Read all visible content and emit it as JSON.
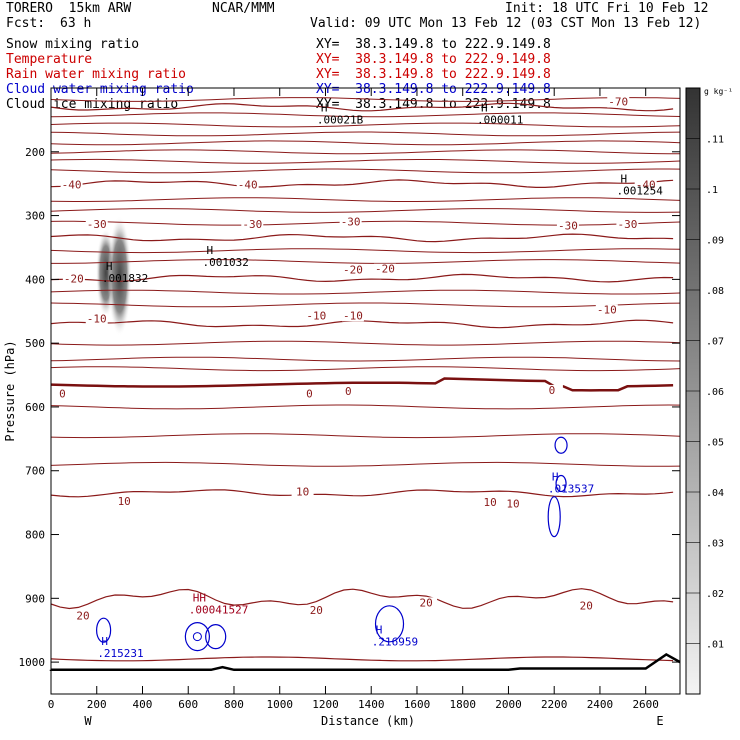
{
  "header": {
    "model": "TORERO  15km ARW",
    "org": "NCAR/MMM",
    "init": "Init: 18 UTC Fri 10 Feb 12",
    "fcst_label": "Fcst:",
    "fcst_value": "63 h",
    "valid": "Valid: 09 UTC Mon 13 Feb 12 (03 CST Mon 13 Feb 12)"
  },
  "legend": [
    {
      "field": "Snow mixing ratio",
      "xy": "XY=  38.3.149.8 to 222.9.149.8",
      "color": "#000000"
    },
    {
      "field": "Temperature",
      "xy": "XY=  38.3.149.8 to 222.9.149.8",
      "color": "#cc0000"
    },
    {
      "field": "Rain water mixing ratio",
      "xy": "XY=  38.3.149.8 to 222.9.149.8",
      "color": "#cc0000"
    },
    {
      "field": "Cloud water mixing ratio",
      "xy": "XY=  38.3.149.8 to 222.9.149.8",
      "color": "#0000cc"
    },
    {
      "field": "Cloud ice mixing ratio",
      "xy": "XY=  38.3.149.8 to 222.9.149.8",
      "color": "#000000"
    }
  ],
  "chart_data": {
    "type": "cross-section contour",
    "xlabel": "Distance (km)",
    "ylabel": "Pressure (hPa)",
    "xlim": [
      0,
      2750
    ],
    "ylim": [
      1050,
      100
    ],
    "x_ticks": [
      0,
      200,
      400,
      600,
      800,
      1000,
      1200,
      1400,
      1600,
      1800,
      2000,
      2200,
      2400,
      2600
    ],
    "y_ticks": [
      200,
      300,
      400,
      500,
      600,
      700,
      800,
      900,
      1000
    ],
    "x_end_labels": {
      "left": "W",
      "right": "E"
    },
    "colorbar": {
      "unit": "g kg⁻¹",
      "labels": [
        ".01",
        ".02",
        ".03",
        ".04",
        ".05",
        ".06",
        ".07",
        ".08",
        ".09",
        ".1",
        ".11"
      ]
    },
    "temperature_isotherms": [
      {
        "value": -70,
        "pressure": 130
      },
      {
        "value": -40,
        "pressure": 250
      },
      {
        "value": -30,
        "pressure": 335
      },
      {
        "value": -20,
        "pressure": 398
      },
      {
        "value": -10,
        "pressure": 470
      },
      {
        "value": 0,
        "pressure": 565
      },
      {
        "value": 10,
        "pressure": 735
      },
      {
        "value": 20,
        "pressure": 900
      }
    ],
    "isotherm_labels": [
      {
        "text": "-70",
        "km": 2480,
        "p": 126
      },
      {
        "text": "-40",
        "km": 90,
        "p": 256
      },
      {
        "text": "-40",
        "km": 860,
        "p": 256
      },
      {
        "text": "-40",
        "km": 2600,
        "p": 256
      },
      {
        "text": "-30",
        "km": 200,
        "p": 318
      },
      {
        "text": "-30",
        "km": 880,
        "p": 318
      },
      {
        "text": "-30",
        "km": 1310,
        "p": 314
      },
      {
        "text": "-30",
        "km": 2260,
        "p": 320
      },
      {
        "text": "-30",
        "km": 2520,
        "p": 318
      },
      {
        "text": "-20",
        "km": 100,
        "p": 403
      },
      {
        "text": "-20",
        "km": 1320,
        "p": 389
      },
      {
        "text": "-20",
        "km": 1460,
        "p": 388
      },
      {
        "text": "-10",
        "km": 200,
        "p": 466
      },
      {
        "text": "-10",
        "km": 1160,
        "p": 461
      },
      {
        "text": "-10",
        "km": 1320,
        "p": 461
      },
      {
        "text": "-10",
        "km": 2430,
        "p": 452
      },
      {
        "text": "0",
        "km": 50,
        "p": 584
      },
      {
        "text": "0",
        "km": 1130,
        "p": 584
      },
      {
        "text": "0",
        "km": 1300,
        "p": 580
      },
      {
        "text": "0",
        "km": 2190,
        "p": 578
      },
      {
        "text": "10",
        "km": 320,
        "p": 752
      },
      {
        "text": "10",
        "km": 1100,
        "p": 737
      },
      {
        "text": "10",
        "km": 1920,
        "p": 754
      },
      {
        "text": "10",
        "km": 2020,
        "p": 756
      },
      {
        "text": "20",
        "km": 140,
        "p": 932
      },
      {
        "text": "20",
        "km": 1160,
        "p": 923
      },
      {
        "text": "20",
        "km": 1640,
        "p": 911
      },
      {
        "text": "20",
        "km": 2340,
        "p": 916
      }
    ],
    "maxima": [
      {
        "label": "H",
        "value": ".001832",
        "km": 240,
        "p": 385,
        "color": "#000000"
      },
      {
        "label": "H",
        "value": ".001032",
        "km": 680,
        "p": 360,
        "color": "#000000"
      },
      {
        "label": "H",
        "value": ".00021B",
        "km": 1180,
        "p": 137,
        "color": "#000000"
      },
      {
        "label": "H",
        "value": ".000011",
        "km": 1880,
        "p": 137,
        "color": "#000000"
      },
      {
        "label": "H",
        "value": ".001254",
        "km": 2490,
        "p": 248,
        "color": "#000000"
      },
      {
        "label": "H",
        "value": ".013537",
        "km": 2190,
        "p": 715,
        "color": "#0000cc"
      },
      {
        "label": "H",
        "value": ".215231",
        "km": 220,
        "p": 973,
        "color": "#0000cc"
      },
      {
        "label": "H",
        "value": ".216959",
        "km": 1420,
        "p": 955,
        "color": "#0000cc"
      },
      {
        "label": "HH",
        "value": ".00041527",
        "km": 620,
        "p": 905,
        "color": "#a0001c"
      }
    ]
  }
}
